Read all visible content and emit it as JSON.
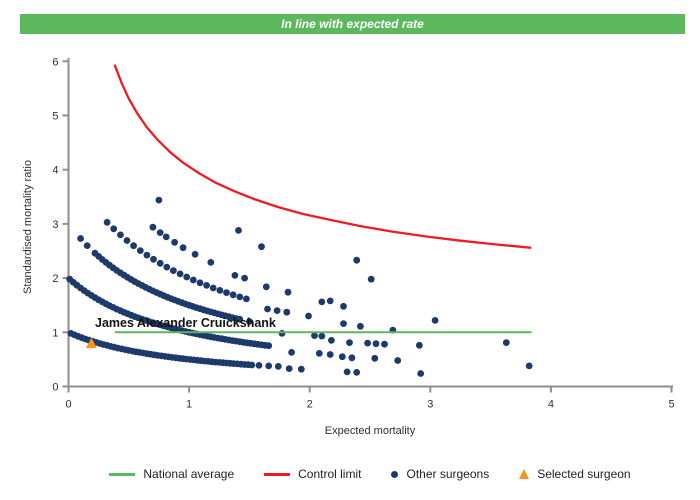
{
  "banner": {
    "text": "In line with expected rate",
    "bg_color": "#5cb85c",
    "text_color": "#ffffff"
  },
  "chart_data": {
    "type": "scatter",
    "xlabel": "Expected mortality",
    "ylabel": "Standardised mortality ratio",
    "xlim": [
      0,
      5
    ],
    "ylim": [
      0,
      6
    ],
    "x_ticks": [
      0,
      1,
      2,
      3,
      4,
      5
    ],
    "y_ticks": [
      0,
      1,
      2,
      3,
      4,
      5,
      6
    ],
    "grid": false,
    "axis_color": "#8e8e8e",
    "tick_label_color": "#2f2f2f",
    "annotation": {
      "text": "James Alexander Cruickshank",
      "x": 0.22,
      "y": 1.1,
      "color": "#111111"
    },
    "selected_surgeon": {
      "label": "Selected surgeon",
      "x": 0.19,
      "y": 0.8,
      "color": "#f7941e",
      "marker": "triangle-up"
    },
    "national_average": {
      "label": "National average",
      "y": 1.0,
      "x_start": 0.385,
      "x_end": 3.84,
      "color": "#5cb85c"
    },
    "control_limit": {
      "label": "Control limit",
      "color": "#ed1c24",
      "model": "upper control limit ~ 1 + 3.05/sqrt(expected)",
      "points": [
        [
          0.385,
          5.92
        ],
        [
          0.44,
          5.6
        ],
        [
          0.5,
          5.31
        ],
        [
          0.57,
          5.04
        ],
        [
          0.65,
          4.78
        ],
        [
          0.74,
          4.55
        ],
        [
          0.84,
          4.33
        ],
        [
          0.95,
          4.13
        ],
        [
          1.08,
          3.94
        ],
        [
          1.22,
          3.76
        ],
        [
          1.38,
          3.6
        ],
        [
          1.55,
          3.45
        ],
        [
          1.74,
          3.31
        ],
        [
          1.95,
          3.18
        ],
        [
          2.18,
          3.07
        ],
        [
          2.42,
          2.96
        ],
        [
          2.68,
          2.86
        ],
        [
          2.96,
          2.77
        ],
        [
          3.25,
          2.69
        ],
        [
          3.55,
          2.62
        ],
        [
          3.83,
          2.56
        ]
      ]
    },
    "other_surgeons": {
      "label": "Other surgeons",
      "color": "#1d3a6b",
      "marker_radius": 3.4,
      "band_model": "SMR = deaths / (1 + expected mortality); dense bands are surgeons with equal death counts",
      "dense_bands": [
        {
          "deaths": 1,
          "x_start": 0.02,
          "x_end": 1.52,
          "x_step": 0.03
        },
        {
          "deaths": 2,
          "x_start": 0.01,
          "x_end": 1.67,
          "x_step": 0.03
        },
        {
          "deaths": 3,
          "x_start": 0.22,
          "x_end": 1.42,
          "x_step": 0.03
        },
        {
          "deaths": 4,
          "x_start": 0.32,
          "x_end": 1.48,
          "x_step": 0.055
        }
      ],
      "points": [
        [
          0.1,
          2.73
        ],
        [
          0.155,
          2.6
        ],
        [
          0.7,
          2.94
        ],
        [
          0.76,
          2.84
        ],
        [
          0.81,
          2.76
        ],
        [
          0.88,
          2.66
        ],
        [
          0.95,
          2.56
        ],
        [
          1.05,
          2.44
        ],
        [
          1.18,
          2.29
        ],
        [
          0.75,
          3.44
        ],
        [
          1.41,
          2.88
        ],
        [
          1.6,
          2.58
        ],
        [
          2.39,
          2.33
        ],
        [
          2.51,
          1.98
        ],
        [
          1.38,
          2.05
        ],
        [
          1.46,
          2.0
        ],
        [
          1.64,
          1.84
        ],
        [
          1.82,
          1.74
        ],
        [
          2.1,
          1.56
        ],
        [
          2.17,
          1.58
        ],
        [
          2.28,
          1.48
        ],
        [
          3.04,
          1.22
        ],
        [
          1.65,
          1.43
        ],
        [
          1.73,
          1.4
        ],
        [
          1.81,
          1.37
        ],
        [
          1.99,
          1.3
        ],
        [
          2.28,
          1.16
        ],
        [
          2.42,
          1.11
        ],
        [
          2.69,
          1.04
        ],
        [
          3.63,
          0.81
        ],
        [
          1.5,
          1.2
        ],
        [
          1.77,
          0.98
        ],
        [
          2.04,
          0.94
        ],
        [
          2.1,
          0.93
        ],
        [
          2.18,
          0.85
        ],
        [
          2.33,
          0.81
        ],
        [
          2.48,
          0.8
        ],
        [
          2.55,
          0.79
        ],
        [
          2.62,
          0.78
        ],
        [
          2.91,
          0.76
        ],
        [
          1.85,
          0.63
        ],
        [
          2.08,
          0.61
        ],
        [
          2.17,
          0.59
        ],
        [
          2.27,
          0.55
        ],
        [
          2.35,
          0.53
        ],
        [
          2.54,
          0.52
        ],
        [
          2.73,
          0.48
        ],
        [
          3.82,
          0.38
        ],
        [
          1.58,
          0.39
        ],
        [
          1.66,
          0.38
        ],
        [
          1.74,
          0.37
        ],
        [
          1.83,
          0.33
        ],
        [
          1.93,
          0.32
        ],
        [
          2.31,
          0.27
        ],
        [
          2.39,
          0.26
        ],
        [
          2.92,
          0.24
        ]
      ]
    }
  },
  "legend": {
    "items": [
      {
        "label": "National average",
        "swatch": "line",
        "color": "#5cb85c"
      },
      {
        "label": "Control limit",
        "swatch": "line",
        "color": "#ed1c24"
      },
      {
        "label": "Other surgeons",
        "swatch": "dot",
        "color": "#1d3a6b"
      },
      {
        "label": "Selected surgeon",
        "swatch": "triangle",
        "color": "#f7941e"
      }
    ]
  }
}
